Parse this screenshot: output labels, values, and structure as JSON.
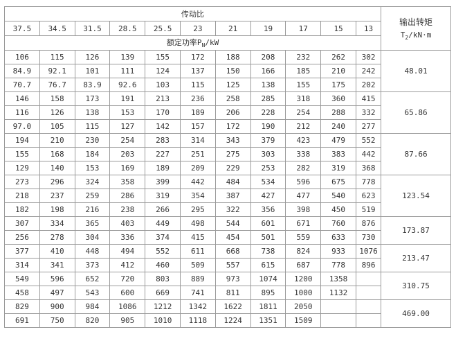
{
  "header": {
    "ratio_title": "传动比",
    "ratios": [
      "37.5",
      "34.5",
      "31.5",
      "28.5",
      "25.5",
      "23",
      "21",
      "19",
      "17",
      "15",
      "13"
    ],
    "power_label": "额定功率P",
    "power_sub": "N",
    "power_unit": "/kW",
    "torque_title": "输出转矩",
    "torque_symbol": "T",
    "torque_sub": "2",
    "torque_unit": "/kN·m"
  },
  "groups": [
    {
      "torque": "48.01",
      "rows": [
        [
          "106",
          "115",
          "126",
          "139",
          "155",
          "172",
          "188",
          "208",
          "232",
          "262",
          "302"
        ],
        [
          "84.9",
          "92.1",
          "101",
          "111",
          "124",
          "137",
          "150",
          "166",
          "185",
          "210",
          "242"
        ],
        [
          "70.7",
          "76.7",
          "83.9",
          "92.6",
          "103",
          "115",
          "125",
          "138",
          "155",
          "175",
          "202"
        ]
      ]
    },
    {
      "torque": "65.86",
      "rows": [
        [
          "146",
          "158",
          "173",
          "191",
          "213",
          "236",
          "258",
          "285",
          "318",
          "360",
          "415"
        ],
        [
          "116",
          "126",
          "138",
          "153",
          "170",
          "189",
          "206",
          "228",
          "254",
          "288",
          "332"
        ],
        [
          "97.0",
          "105",
          "115",
          "127",
          "142",
          "157",
          "172",
          "190",
          "212",
          "240",
          "277"
        ]
      ]
    },
    {
      "torque": "87.66",
      "rows": [
        [
          "194",
          "210",
          "230",
          "254",
          "283",
          "314",
          "343",
          "379",
          "423",
          "479",
          "552"
        ],
        [
          "155",
          "168",
          "184",
          "203",
          "227",
          "251",
          "275",
          "303",
          "338",
          "383",
          "442"
        ],
        [
          "129",
          "140",
          "153",
          "169",
          "189",
          "209",
          "229",
          "253",
          "282",
          "319",
          "368"
        ]
      ]
    },
    {
      "torque": "123.54",
      "rows": [
        [
          "273",
          "296",
          "324",
          "358",
          "399",
          "442",
          "484",
          "534",
          "596",
          "675",
          "778"
        ],
        [
          "218",
          "237",
          "259",
          "286",
          "319",
          "354",
          "387",
          "427",
          "477",
          "540",
          "623"
        ],
        [
          "182",
          "198",
          "216",
          "238",
          "266",
          "295",
          "322",
          "356",
          "398",
          "450",
          "519"
        ]
      ]
    },
    {
      "torque": "173.87",
      "rows": [
        [
          "307",
          "334",
          "365",
          "403",
          "449",
          "498",
          "544",
          "601",
          "671",
          "760",
          "876"
        ],
        [
          "256",
          "278",
          "304",
          "336",
          "374",
          "415",
          "454",
          "501",
          "559",
          "633",
          "730"
        ]
      ]
    },
    {
      "torque": "213.47",
      "rows": [
        [
          "377",
          "410",
          "448",
          "494",
          "552",
          "611",
          "668",
          "738",
          "824",
          "933",
          "1076"
        ],
        [
          "314",
          "341",
          "373",
          "412",
          "460",
          "509",
          "557",
          "615",
          "687",
          "778",
          "896"
        ]
      ]
    },
    {
      "torque": "310.75",
      "rows": [
        [
          "549",
          "596",
          "652",
          "720",
          "803",
          "889",
          "973",
          "1074",
          "1200",
          "1358",
          ""
        ],
        [
          "458",
          "497",
          "543",
          "600",
          "669",
          "741",
          "811",
          "895",
          "1000",
          "1132",
          ""
        ]
      ]
    },
    {
      "torque": "469.00",
      "rows": [
        [
          "829",
          "900",
          "984",
          "1086",
          "1212",
          "1342",
          "1622",
          "1811",
          "2050",
          "",
          ""
        ],
        [
          "691",
          "750",
          "820",
          "905",
          "1010",
          "1118",
          "1224",
          "1351",
          "1509",
          "",
          ""
        ]
      ]
    }
  ]
}
